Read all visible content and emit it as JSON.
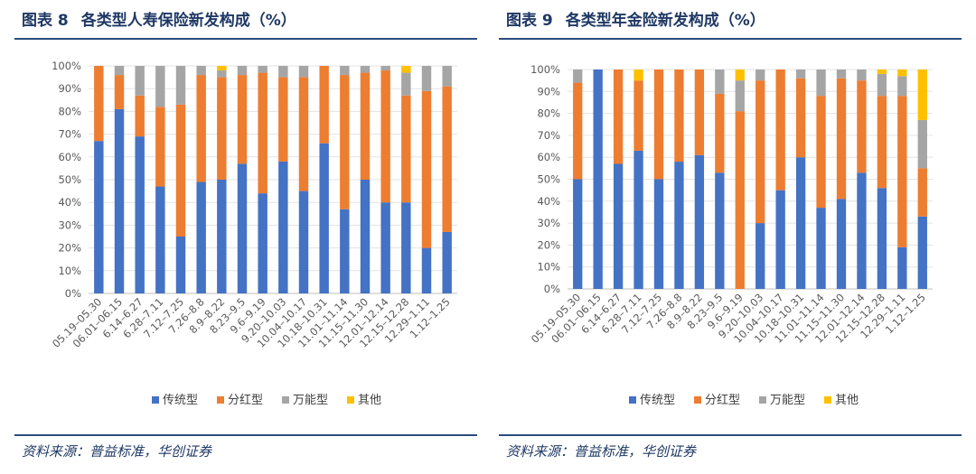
{
  "charts": [
    {
      "figure_label": "图表 8",
      "figure_title": "各类型人寿保险新发构成（%）",
      "source": "资料来源：普益标准，华创证券",
      "chart_data": {
        "type": "bar",
        "stacked": true,
        "categories": [
          "05.19–05.30",
          "06.01–06.15",
          "6.14–6.27",
          "6.28–7.11",
          "7.12–7.25",
          "7.26–8.8",
          "8.9–8.22",
          "8.23–9.5",
          "9.6–9.19",
          "9.20–10.03",
          "10.04–10.17",
          "10.18–10.31",
          "11.01–11.14",
          "11.15–11.30",
          "12.01–12.14",
          "12.15–12.28",
          "12.29–1.11",
          "1.12–1.25"
        ],
        "series": [
          {
            "name": "传统型",
            "color": "#4472c4",
            "values": [
              67,
              81,
              69,
              47,
              25,
              49,
              50,
              57,
              44,
              58,
              45,
              66,
              37,
              50,
              40,
              40,
              20,
              27
            ]
          },
          {
            "name": "分红型",
            "color": "#ed7d31",
            "values": [
              33,
              15,
              18,
              35,
              58,
              47,
              45,
              39,
              53,
              37,
              50,
              34,
              59,
              47,
              58,
              47,
              69,
              64
            ]
          },
          {
            "name": "万能型",
            "color": "#a5a5a5",
            "values": [
              0,
              4,
              13,
              18,
              17,
              4,
              3,
              4,
              3,
              5,
              5,
              0,
              4,
              3,
              2,
              10,
              11,
              9
            ]
          },
          {
            "name": "其他",
            "color": "#ffc000",
            "values": [
              0,
              0,
              0,
              0,
              0,
              0,
              2,
              0,
              0,
              0,
              0,
              0,
              0,
              0,
              0,
              3,
              0,
              0
            ]
          }
        ],
        "y_ticks": [
          "0%",
          "10%",
          "20%",
          "30%",
          "40%",
          "50%",
          "60%",
          "70%",
          "80%",
          "90%",
          "100%"
        ],
        "ylim": [
          0,
          100
        ],
        "legend": "bottom"
      }
    },
    {
      "figure_label": "图表 9",
      "figure_title": "各类型年金险新发构成（%）",
      "source": "资料来源：普益标准，华创证券",
      "chart_data": {
        "type": "bar",
        "stacked": true,
        "categories": [
          "05.19–05.30",
          "06.01–06.15",
          "6.14–6.27",
          "6.28–7.11",
          "7.12–7.25",
          "7.26–8.8",
          "8.9–8.22",
          "8.23–9.5",
          "9.6–9.19",
          "9.20–10.03",
          "10.04–10.17",
          "10.18–10.31",
          "11.01–11.14",
          "11.15–11.30",
          "12.01–12.14",
          "12.15–12.28",
          "12.29–1.11",
          "1.12–1.25"
        ],
        "series": [
          {
            "name": "传统型",
            "color": "#4472c4",
            "values": [
              50,
              100,
              57,
              63,
              50,
              58,
              61,
              53,
              0,
              30,
              45,
              60,
              37,
              41,
              53,
              46,
              19,
              33
            ]
          },
          {
            "name": "分红型",
            "color": "#ed7d31",
            "values": [
              44,
              0,
              43,
              32,
              50,
              42,
              39,
              36,
              81,
              65,
              55,
              36,
              51,
              55,
              42,
              42,
              69,
              22
            ]
          },
          {
            "name": "万能型",
            "color": "#a5a5a5",
            "values": [
              6,
              0,
              0,
              0,
              0,
              0,
              0,
              11,
              14,
              5,
              0,
              4,
              12,
              4,
              5,
              10,
              9,
              22
            ]
          },
          {
            "name": "其他",
            "color": "#ffc000",
            "values": [
              0,
              0,
              0,
              5,
              0,
              0,
              0,
              0,
              5,
              0,
              0,
              0,
              0,
              0,
              0,
              2,
              3,
              23
            ]
          }
        ],
        "y_ticks": [
          "0%",
          "10%",
          "20%",
          "30%",
          "40%",
          "50%",
          "60%",
          "70%",
          "80%",
          "90%",
          "100%"
        ],
        "ylim": [
          0,
          100
        ],
        "legend": "bottom"
      }
    }
  ]
}
